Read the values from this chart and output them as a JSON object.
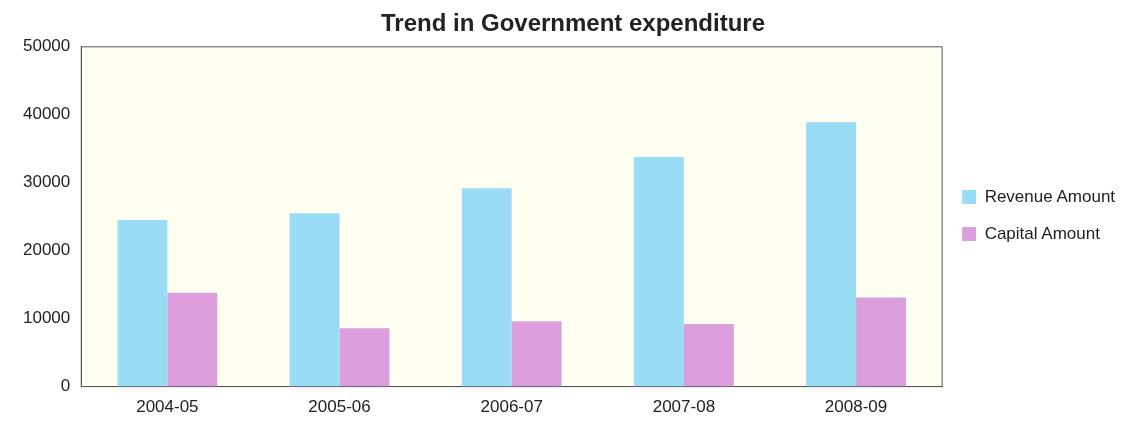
{
  "chart_data": {
    "type": "bar",
    "title": "Trend in Government expenditure",
    "categories": [
      "2004-05",
      "2005-06",
      "2006-07",
      "2007-08",
      "2008-09"
    ],
    "series": [
      {
        "name": "Revenue Amount",
        "color": "#9adcf6",
        "values": [
          24500,
          25500,
          29200,
          33800,
          38900
        ]
      },
      {
        "name": "Capital Amount",
        "color": "#dc9edc",
        "values": [
          13800,
          8600,
          9600,
          9200,
          13100
        ]
      }
    ],
    "ylim": [
      0,
      50000
    ],
    "yticks": [
      0,
      10000,
      20000,
      30000,
      40000,
      50000
    ],
    "grid": false,
    "legend": "right"
  }
}
